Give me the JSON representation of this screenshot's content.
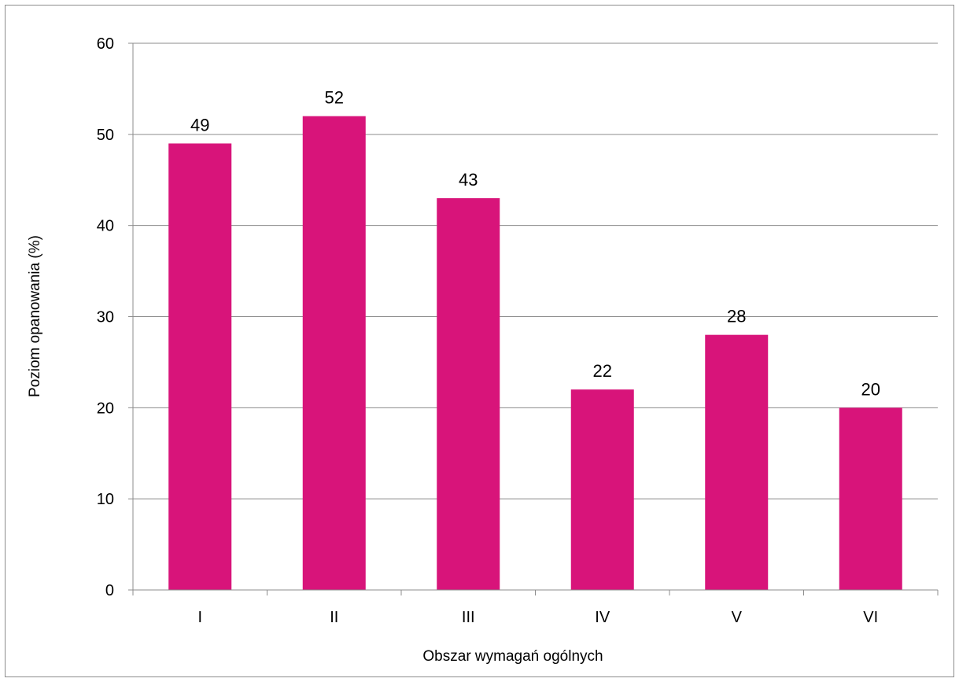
{
  "chart_data": {
    "type": "bar",
    "title": "",
    "xlabel": "Obszar wymagań ogólnych",
    "ylabel": "Poziom opanowania (%)",
    "categories": [
      "I",
      "II",
      "III",
      "IV",
      "V",
      "VI"
    ],
    "values": [
      49,
      52,
      43,
      22,
      28,
      20
    ],
    "ylim": [
      0,
      60
    ],
    "yticks": [
      0,
      10,
      20,
      30,
      40,
      50,
      60
    ],
    "bar_color": "#d8147a",
    "gridlines": true,
    "data_labels": true,
    "legend": "none"
  }
}
